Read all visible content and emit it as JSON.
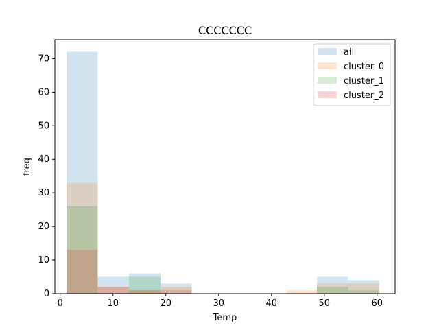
{
  "chart_data": {
    "type": "histogram",
    "title": "CCCCCCC",
    "xlabel": "Temp",
    "ylabel": "freq",
    "xlim": [
      -1.0,
      63.4
    ],
    "ylim": [
      0,
      75.6
    ],
    "xticks": [
      0,
      10,
      20,
      30,
      40,
      50,
      60
    ],
    "yticks": [
      0,
      10,
      20,
      30,
      40,
      50,
      60,
      70
    ],
    "legend_position": "top-right",
    "alpha": 0.2,
    "series": [
      {
        "name": "all",
        "color": "#1f77b4",
        "bins": [
          {
            "x0": 1.2,
            "x1": 7.1,
            "count": 72
          },
          {
            "x0": 7.1,
            "x1": 13.0,
            "count": 5
          },
          {
            "x0": 13.0,
            "x1": 19.0,
            "count": 6
          },
          {
            "x0": 19.0,
            "x1": 24.9,
            "count": 3
          },
          {
            "x0": 48.6,
            "x1": 54.5,
            "count": 5
          },
          {
            "x0": 54.5,
            "x1": 60.4,
            "count": 4
          }
        ]
      },
      {
        "name": "cluster_0",
        "color": "#ff7f0e",
        "bins": [
          {
            "x0": 1.2,
            "x1": 7.1,
            "count": 33
          },
          {
            "x0": 7.1,
            "x1": 13.0,
            "count": 2
          },
          {
            "x0": 13.0,
            "x1": 19.0,
            "count": 1
          },
          {
            "x0": 19.0,
            "x1": 24.9,
            "count": 2
          },
          {
            "x0": 42.9,
            "x1": 48.6,
            "count": 1
          },
          {
            "x0": 48.6,
            "x1": 54.5,
            "count": 3
          },
          {
            "x0": 54.5,
            "x1": 60.4,
            "count": 3
          }
        ]
      },
      {
        "name": "cluster_1",
        "color": "#2ca02c",
        "bins": [
          {
            "x0": 1.2,
            "x1": 7.1,
            "count": 26
          },
          {
            "x0": 13.0,
            "x1": 19.0,
            "count": 5
          },
          {
            "x0": 48.6,
            "x1": 54.5,
            "count": 2
          },
          {
            "x0": 54.5,
            "x1": 60.4,
            "count": 1
          }
        ]
      },
      {
        "name": "cluster_2",
        "color": "#d62728",
        "bins": [
          {
            "x0": 1.2,
            "x1": 7.1,
            "count": 13
          },
          {
            "x0": 7.1,
            "x1": 13.0,
            "count": 2
          },
          {
            "x0": 13.0,
            "x1": 19.0,
            "count": 1
          },
          {
            "x0": 19.0,
            "x1": 24.9,
            "count": 1
          }
        ]
      }
    ]
  }
}
